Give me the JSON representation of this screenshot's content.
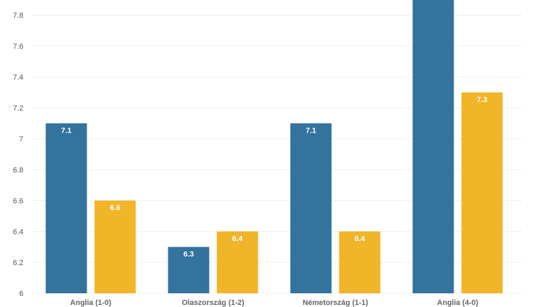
{
  "chart_data": {
    "type": "bar",
    "categories": [
      "Anglia (1-0)",
      "Olaszország (1-2)",
      "Németország (1-1)",
      "Anglia (4-0)"
    ],
    "series": [
      {
        "values": [
          7.1,
          6.3,
          7.1,
          8.0
        ],
        "labels": [
          "7.1",
          "6.3",
          "7.1",
          ""
        ],
        "color": "#33739e"
      },
      {
        "values": [
          6.6,
          6.4,
          6.4,
          7.3
        ],
        "labels": [
          "6.6",
          "6.4",
          "6.4",
          "7.3"
        ],
        "color": "#f0b528"
      }
    ],
    "yticks": [
      "6",
      "6.2",
      "6.4",
      "6.6",
      "6.8",
      "7",
      "7.2",
      "7.4",
      "7.6",
      "7.8"
    ],
    "ylim": [
      6,
      7.9
    ],
    "grid": true,
    "title": "",
    "xlabel": "",
    "ylabel": ""
  }
}
